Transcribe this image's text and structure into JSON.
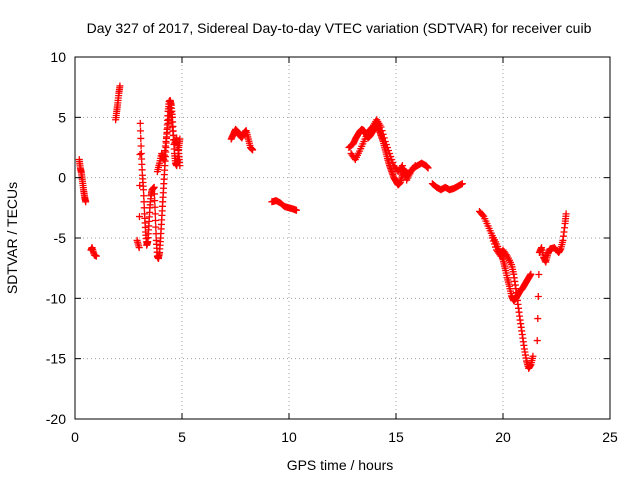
{
  "chart_data": {
    "type": "scatter",
    "title": "Day 327 of 2017, Sidereal Day-to-day VTEC variation (SDTVAR) for receiver cuib",
    "xlabel": "GPS time / hours",
    "ylabel": "SDTVAR / TECUs",
    "xlim": [
      0,
      25
    ],
    "ylim": [
      -20,
      10
    ],
    "xticks": [
      0,
      5,
      10,
      15,
      20,
      25
    ],
    "yticks": [
      -20,
      -15,
      -10,
      -5,
      0,
      5,
      10
    ],
    "xtick_labels": [
      "0",
      "5",
      "10",
      "15",
      "20",
      "25"
    ],
    "ytick_labels": [
      "-20",
      "-15",
      "-10",
      "-5",
      "0",
      "5",
      "10"
    ],
    "grid": true,
    "marker": "plus",
    "series": [
      {
        "name": "SDTVAR",
        "color": "#ff0000",
        "segments": [
          [
            [
              0.2,
              1.5
            ],
            [
              0.25,
              0.8
            ],
            [
              0.3,
              0.4
            ],
            [
              0.35,
              -0.3
            ],
            [
              0.4,
              -1.0
            ],
            [
              0.45,
              -1.6
            ],
            [
              0.5,
              -2.0
            ]
          ],
          [
            [
              0.75,
              -6.0
            ],
            [
              0.8,
              -5.8
            ],
            [
              0.9,
              -6.4
            ],
            [
              1.0,
              -6.5
            ]
          ],
          [
            [
              1.9,
              4.8
            ],
            [
              1.95,
              5.5
            ],
            [
              2.0,
              6.2
            ],
            [
              2.05,
              7.0
            ],
            [
              2.1,
              7.6
            ]
          ],
          [
            [
              2.9,
              -5.2
            ],
            [
              3.0,
              -5.8
            ],
            [
              3.05,
              4.5
            ],
            [
              3.1,
              2.0
            ],
            [
              3.15,
              0.2
            ],
            [
              3.2,
              -1.0
            ],
            [
              3.25,
              -3.0
            ],
            [
              3.3,
              -4.5
            ],
            [
              3.35,
              -5.6
            ],
            [
              3.4,
              -5.3
            ],
            [
              3.45,
              -4.0
            ],
            [
              3.5,
              -2.5
            ],
            [
              3.55,
              -1.5
            ],
            [
              3.6,
              -1.0
            ],
            [
              3.7,
              -0.8
            ],
            [
              3.75,
              -3.0
            ],
            [
              3.8,
              -5.2
            ],
            [
              3.85,
              -6.5
            ],
            [
              3.9,
              -6.7
            ],
            [
              3.95,
              -6.2
            ],
            [
              4.0,
              -5.0
            ],
            [
              4.05,
              -3.5
            ],
            [
              4.1,
              -2.0
            ],
            [
              4.15,
              -0.5
            ],
            [
              4.2,
              1.0
            ],
            [
              4.25,
              2.5
            ],
            [
              4.3,
              4.0
            ],
            [
              4.35,
              5.5
            ],
            [
              4.4,
              6.3
            ],
            [
              4.45,
              6.4
            ],
            [
              4.5,
              6.0
            ],
            [
              4.55,
              5.0
            ],
            [
              4.6,
              3.5
            ],
            [
              4.65,
              2.0
            ],
            [
              4.7,
              1.2
            ],
            [
              4.75,
              1.0
            ],
            [
              4.8,
              1.5
            ],
            [
              4.85,
              2.5
            ],
            [
              4.9,
              3.2
            ]
          ],
          [
            [
              3.85,
              0.5
            ],
            [
              3.95,
              1.2
            ],
            [
              4.05,
              2.0
            ],
            [
              4.15,
              1.5
            ],
            [
              4.25,
              3.0
            ],
            [
              4.35,
              4.5
            ],
            [
              4.45,
              5.8
            ],
            [
              4.55,
              4.2
            ],
            [
              4.65,
              2.8
            ],
            [
              4.75,
              3.3
            ],
            [
              4.85,
              2.0
            ],
            [
              4.9,
              1.0
            ]
          ],
          [
            [
              7.3,
              3.2
            ],
            [
              7.4,
              3.6
            ],
            [
              7.5,
              4.0
            ],
            [
              7.6,
              3.8
            ],
            [
              7.7,
              3.5
            ],
            [
              7.8,
              3.3
            ],
            [
              7.9,
              3.7
            ],
            [
              8.0,
              3.9
            ],
            [
              8.1,
              3.2
            ],
            [
              8.2,
              2.5
            ],
            [
              8.3,
              2.3
            ]
          ],
          [
            [
              9.2,
              -2.0
            ],
            [
              9.4,
              -1.9
            ],
            [
              9.6,
              -2.1
            ],
            [
              9.8,
              -2.4
            ],
            [
              10.0,
              -2.5
            ],
            [
              10.2,
              -2.6
            ],
            [
              10.35,
              -2.7
            ]
          ],
          [
            [
              12.8,
              2.5
            ],
            [
              13.0,
              2.8
            ],
            [
              13.1,
              3.2
            ],
            [
              13.2,
              3.5
            ],
            [
              13.3,
              3.8
            ],
            [
              13.4,
              4.0
            ],
            [
              13.5,
              3.9
            ],
            [
              13.6,
              3.6
            ],
            [
              13.7,
              3.3
            ],
            [
              13.8,
              3.5
            ],
            [
              13.9,
              3.8
            ],
            [
              14.0,
              4.0
            ],
            [
              14.1,
              4.3
            ],
            [
              14.2,
              4.0
            ],
            [
              14.3,
              3.5
            ],
            [
              14.4,
              3.0
            ],
            [
              14.5,
              2.3
            ],
            [
              14.6,
              1.6
            ],
            [
              14.7,
              1.0
            ],
            [
              14.8,
              0.5
            ],
            [
              14.9,
              0.0
            ],
            [
              15.0,
              -0.3
            ],
            [
              15.1,
              -0.6
            ],
            [
              15.2,
              -0.4
            ],
            [
              15.3,
              0.2
            ],
            [
              15.4,
              0.6
            ],
            [
              15.6,
              0.3
            ],
            [
              15.8,
              0.8
            ],
            [
              16.0,
              1.0
            ],
            [
              16.2,
              1.2
            ],
            [
              16.4,
              1.0
            ],
            [
              16.5,
              0.8
            ]
          ],
          [
            [
              12.9,
              2.0
            ],
            [
              13.1,
              1.5
            ],
            [
              13.3,
              2.2
            ],
            [
              13.5,
              3.0
            ],
            [
              13.7,
              3.8
            ],
            [
              13.9,
              4.2
            ],
            [
              14.1,
              4.8
            ],
            [
              14.3,
              4.2
            ],
            [
              14.5,
              3.0
            ],
            [
              14.7,
              2.0
            ],
            [
              14.9,
              1.0
            ],
            [
              15.1,
              0.5
            ],
            [
              15.3,
              1.0
            ],
            [
              15.5,
              -0.2
            ],
            [
              15.7,
              0.5
            ],
            [
              15.9,
              1.0
            ]
          ],
          [
            [
              16.7,
              -0.5
            ],
            [
              16.9,
              -0.8
            ],
            [
              17.1,
              -1.0
            ],
            [
              17.3,
              -0.8
            ],
            [
              17.5,
              -1.0
            ],
            [
              17.7,
              -0.9
            ],
            [
              17.9,
              -0.7
            ],
            [
              18.1,
              -0.5
            ]
          ],
          [
            [
              18.9,
              -2.8
            ],
            [
              19.1,
              -3.2
            ],
            [
              19.3,
              -4.0
            ],
            [
              19.5,
              -4.8
            ],
            [
              19.7,
              -5.5
            ],
            [
              19.9,
              -6.3
            ],
            [
              20.0,
              -6.8
            ],
            [
              20.1,
              -7.5
            ],
            [
              20.2,
              -8.3
            ],
            [
              20.3,
              -9.0
            ],
            [
              20.4,
              -9.8
            ],
            [
              20.5,
              -10.2
            ],
            [
              20.6,
              -10.0
            ],
            [
              20.7,
              -9.7
            ],
            [
              20.8,
              -9.4
            ],
            [
              20.9,
              -9.2
            ],
            [
              21.0,
              -8.9
            ],
            [
              21.1,
              -8.6
            ],
            [
              21.2,
              -8.3
            ],
            [
              21.3,
              -8.0
            ]
          ],
          [
            [
              19.5,
              -5.0
            ],
            [
              19.7,
              -6.0
            ],
            [
              19.9,
              -6.5
            ],
            [
              20.0,
              -6.0
            ],
            [
              20.2,
              -6.5
            ],
            [
              20.4,
              -7.2
            ],
            [
              20.5,
              -8.0
            ],
            [
              20.6,
              -9.2
            ],
            [
              20.7,
              -10.5
            ],
            [
              20.8,
              -11.8
            ],
            [
              20.9,
              -13.0
            ],
            [
              21.0,
              -14.2
            ],
            [
              21.1,
              -15.2
            ],
            [
              21.2,
              -15.8
            ],
            [
              21.3,
              -15.5
            ],
            [
              21.4,
              -14.8
            ]
          ],
          [
            [
              21.6,
              -13.5
            ],
            [
              21.7,
              -6.2
            ],
            [
              21.8,
              -5.8
            ],
            [
              21.9,
              -6.6
            ],
            [
              22.0,
              -7.0
            ],
            [
              22.1,
              -6.3
            ],
            [
              22.2,
              -5.9
            ],
            [
              22.4,
              -5.8
            ],
            [
              22.6,
              -6.2
            ],
            [
              22.7,
              -5.9
            ],
            [
              22.8,
              -5.2
            ],
            [
              22.9,
              -3.8
            ],
            [
              22.95,
              -3.0
            ]
          ]
        ]
      }
    ]
  }
}
